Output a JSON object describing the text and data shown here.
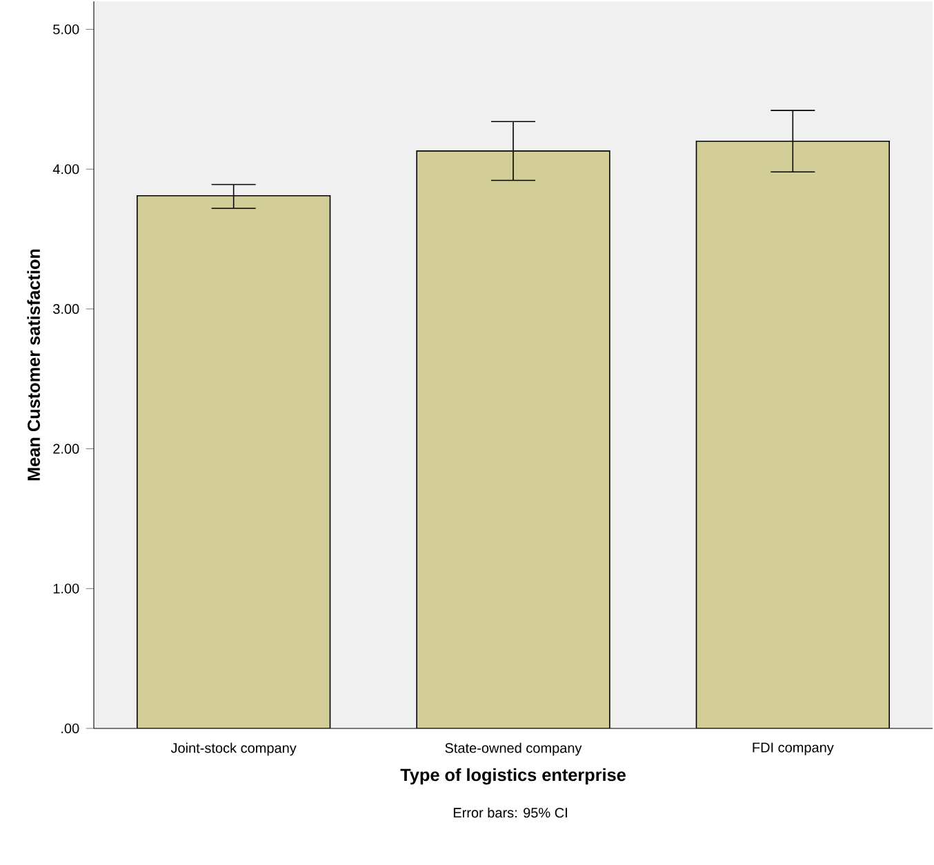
{
  "chart_data": {
    "type": "bar",
    "xlabel": "Type of logistics enterprise",
    "ylabel": "Mean Customer satisfaction",
    "categories": [
      "Joint-stock company",
      "State-owned company",
      "FDI company"
    ],
    "values": [
      3.81,
      4.13,
      4.2
    ],
    "errors": [
      [
        3.72,
        3.89
      ],
      [
        3.92,
        4.34
      ],
      [
        3.98,
        4.42
      ]
    ],
    "color": "#d3ce97",
    "ylim": [
      0,
      5.2
    ],
    "yticks": [
      {
        "value": 0,
        "label": ".00"
      },
      {
        "value": 1,
        "label": "1.00"
      },
      {
        "value": 2,
        "label": "2.00"
      },
      {
        "value": 3,
        "label": "3.00"
      },
      {
        "value": 4,
        "label": "4.00"
      },
      {
        "value": 5,
        "label": "5.00"
      }
    ],
    "annotations": [
      "Error bars: 95% CI"
    ]
  }
}
